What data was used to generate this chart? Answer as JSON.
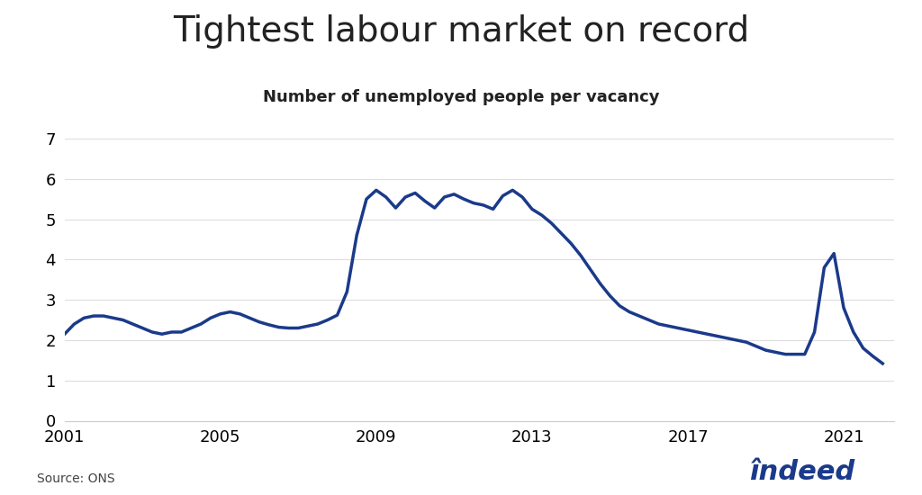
{
  "title": "Tightest labour market on record",
  "subtitle": "Number of unemployed people per vacancy",
  "source": "Source: ONS",
  "line_color": "#1a3a8a",
  "background_color": "#ffffff",
  "ylim": [
    0,
    7
  ],
  "yticks": [
    0,
    1,
    2,
    3,
    4,
    5,
    6,
    7
  ],
  "xticks": [
    2001,
    2005,
    2009,
    2013,
    2017,
    2021
  ],
  "xlim": [
    2001,
    2022.3
  ],
  "title_fontsize": 28,
  "subtitle_fontsize": 13,
  "tick_fontsize": 13,
  "line_width": 2.5,
  "x": [
    2001.0,
    2001.25,
    2001.5,
    2001.75,
    2002.0,
    2002.25,
    2002.5,
    2002.75,
    2003.0,
    2003.25,
    2003.5,
    2003.75,
    2004.0,
    2004.25,
    2004.5,
    2004.75,
    2005.0,
    2005.25,
    2005.5,
    2005.75,
    2006.0,
    2006.25,
    2006.5,
    2006.75,
    2007.0,
    2007.25,
    2007.5,
    2007.75,
    2008.0,
    2008.25,
    2008.5,
    2008.75,
    2009.0,
    2009.25,
    2009.5,
    2009.75,
    2010.0,
    2010.25,
    2010.5,
    2010.75,
    2011.0,
    2011.25,
    2011.5,
    2011.75,
    2012.0,
    2012.25,
    2012.5,
    2012.75,
    2013.0,
    2013.25,
    2013.5,
    2013.75,
    2014.0,
    2014.25,
    2014.5,
    2014.75,
    2015.0,
    2015.25,
    2015.5,
    2015.75,
    2016.0,
    2016.25,
    2016.5,
    2016.75,
    2017.0,
    2017.25,
    2017.5,
    2017.75,
    2018.0,
    2018.25,
    2018.5,
    2018.75,
    2019.0,
    2019.25,
    2019.5,
    2019.75,
    2020.0,
    2020.25,
    2020.5,
    2020.75,
    2021.0,
    2021.25,
    2021.5,
    2021.75,
    2022.0
  ],
  "y": [
    2.15,
    2.4,
    2.55,
    2.6,
    2.6,
    2.55,
    2.5,
    2.4,
    2.3,
    2.2,
    2.15,
    2.2,
    2.2,
    2.3,
    2.4,
    2.55,
    2.65,
    2.7,
    2.65,
    2.55,
    2.45,
    2.38,
    2.32,
    2.3,
    2.3,
    2.35,
    2.4,
    2.5,
    2.62,
    3.2,
    4.6,
    5.5,
    5.72,
    5.55,
    5.28,
    5.55,
    5.65,
    5.45,
    5.28,
    5.55,
    5.62,
    5.5,
    5.4,
    5.35,
    5.25,
    5.58,
    5.72,
    5.55,
    5.25,
    5.1,
    4.9,
    4.65,
    4.4,
    4.1,
    3.75,
    3.4,
    3.1,
    2.85,
    2.7,
    2.6,
    2.5,
    2.4,
    2.35,
    2.3,
    2.25,
    2.2,
    2.15,
    2.1,
    2.05,
    2.0,
    1.95,
    1.85,
    1.75,
    1.7,
    1.65,
    1.65,
    1.65,
    2.2,
    3.8,
    4.15,
    2.8,
    2.2,
    1.8,
    1.6,
    1.42
  ]
}
